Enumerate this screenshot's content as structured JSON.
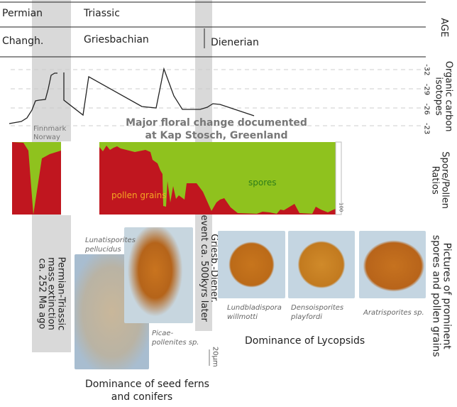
{
  "age": {
    "label": "AGE",
    "periods": [
      "Permian",
      "Triassic"
    ],
    "stages": [
      "Changh.",
      "Griesbachian",
      "Dienerian"
    ]
  },
  "isotopes": {
    "label_line1": "Organic carbon",
    "label_line2": "isotopes",
    "ticks": [
      "-32",
      "-29",
      "-26",
      "-23"
    ],
    "site_label_line1": "Finnmark",
    "site_label_line2": "Norway",
    "headline_line1": "Major floral change documented",
    "headline_line2": "at Kap Stosch, Greenland"
  },
  "ratios": {
    "label_line1": "Spore/Pollen",
    "label_line2": "Ratios",
    "tick": "100",
    "pollen_label": "pollen grains",
    "spores_label": "spores"
  },
  "events": {
    "extinction": [
      "Permian-Triassic",
      "mass extinction",
      "ca. 252 Ma ago"
    ],
    "diener": [
      "Griesb.-Diener.",
      "event ca. 500kyrs later"
    ]
  },
  "pictures": {
    "label_line1": "Pictures of prominent",
    "label_line2": "spores and pollen grains",
    "species": [
      {
        "line1": "Lunatisporites",
        "line2": "pellucidus"
      },
      {
        "line1": "Picae-",
        "line2": "pollenites sp."
      },
      {
        "line1": "Lundbladispora",
        "line2": "willmotti"
      },
      {
        "line1": "Densoisporites",
        "line2": "playfordi"
      },
      {
        "line1": "Aratrisporites sp.",
        "line2": ""
      }
    ],
    "scale": "20µm",
    "caption_left_line1": "Dominance of seed ferns",
    "caption_left_line2": "and conifers",
    "caption_right": "Dominance of Lycopsids"
  },
  "colors": {
    "pollen": "#c0161f",
    "spores": "#8fc21e",
    "band": "#d9d9d9"
  }
}
